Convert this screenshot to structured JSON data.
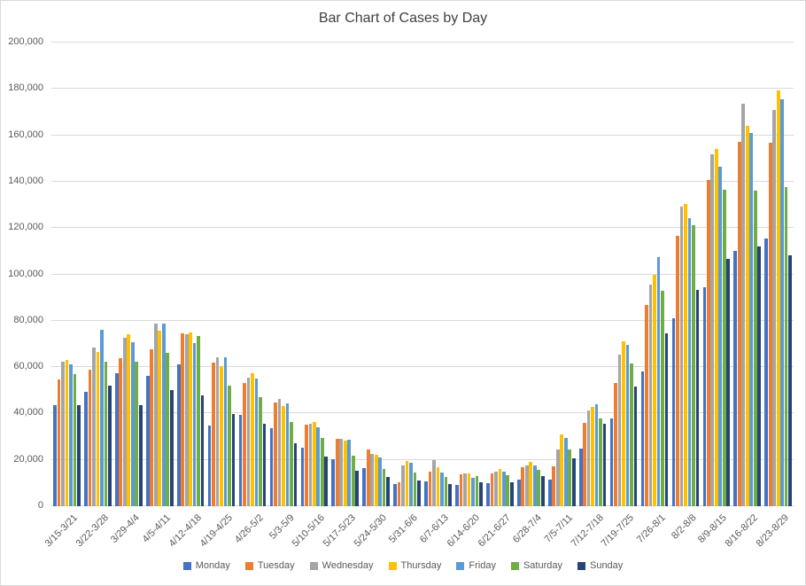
{
  "window": {
    "background": "#FFFFFF",
    "border_color": "#D9D9D9"
  },
  "chart_data": {
    "type": "bar",
    "title": "Bar Chart of Cases by Day",
    "title_color": "#3F3F3F",
    "categories": [
      "3/15-3/21",
      "3/22-3/28",
      "3/29-4/4",
      "4/5-4/11",
      "4/12-4/18",
      "4/19-4/25",
      "4/26-5/2",
      "5/3-5/9",
      "5/10-5/16",
      "5/17-5/23",
      "5/24-5/30",
      "5/31-6/6",
      "6/7-6/13",
      "6/14-6/20",
      "6/21-6/27",
      "6/28-7/4",
      "7/5-7/11",
      "7/12-7/18",
      "7/19-7/25",
      "7/26-8/1",
      "8/2-8/8",
      "8/9-8/15",
      "8/16-8/22",
      "8/23-8/29"
    ],
    "series": [
      {
        "name": "Monday",
        "color": "#4472C4",
        "values": [
          43600,
          49500,
          57400,
          56300,
          61200,
          35000,
          39500,
          33800,
          25200,
          20200,
          16300,
          9600,
          10600,
          9200,
          9800,
          11500,
          11500,
          24900,
          37800,
          58200,
          81200,
          94600,
          110300,
          115400
        ]
      },
      {
        "name": "Tuesday",
        "color": "#ED7D31",
        "values": [
          54600,
          59100,
          63700,
          67600,
          74500,
          61800,
          53100,
          44900,
          35300,
          29200,
          24500,
          10400,
          14900,
          13800,
          14000,
          16800,
          17200,
          35900,
          53200,
          86900,
          116600,
          140900,
          157200,
          156800
        ]
      },
      {
        "name": "Wednesday",
        "color": "#A5A5A5",
        "values": [
          62200,
          68300,
          72500,
          78800,
          74100,
          64300,
          55400,
          46300,
          35700,
          28900,
          22700,
          17700,
          20000,
          14300,
          14900,
          17800,
          24600,
          41400,
          65500,
          95600,
          129300,
          151700,
          173600,
          170800
        ]
      },
      {
        "name": "Thursday",
        "color": "#FFC000",
        "values": [
          63000,
          66700,
          74100,
          75800,
          74900,
          60500,
          57300,
          43300,
          36300,
          28300,
          22100,
          19500,
          16800,
          14300,
          15900,
          19000,
          31000,
          42700,
          71100,
          99800,
          130400,
          154300,
          164200,
          179500
        ]
      },
      {
        "name": "Friday",
        "color": "#5B9BD5",
        "values": [
          61200,
          76200,
          70900,
          78800,
          70300,
          64100,
          55000,
          44200,
          34200,
          28600,
          21200,
          18600,
          14400,
          12400,
          14900,
          17500,
          29600,
          44000,
          69800,
          107400,
          124200,
          146400,
          160900,
          175500
        ]
      },
      {
        "name": "Saturday",
        "color": "#70AD47",
        "values": [
          57000,
          62200,
          62200,
          66000,
          73600,
          52200,
          47100,
          36300,
          29300,
          22000,
          16000,
          14500,
          12700,
          13000,
          13400,
          15600,
          24500,
          37900,
          61600,
          93000,
          121100,
          136400,
          136200,
          137500
        ]
      },
      {
        "name": "Sunday",
        "color": "#264478",
        "values": [
          43600,
          51900,
          43600,
          50000,
          47800,
          39900,
          35400,
          27000,
          21300,
          15500,
          12500,
          11100,
          9600,
          10500,
          10200,
          13000,
          20700,
          35400,
          51700,
          74500,
          93400,
          106700,
          112000,
          108300
        ]
      }
    ],
    "xlabel": "",
    "ylabel": "",
    "ylim": [
      0,
      200000
    ],
    "ytick_interval": 20000,
    "ytick_labels": [
      "0",
      "20,000",
      "40,000",
      "60,000",
      "80,000",
      "100,000",
      "120,000",
      "140,000",
      "160,000",
      "180,000",
      "200,000"
    ],
    "grid": true,
    "gridline_color": "#D9D9D9",
    "axis_label_color": "#595959",
    "legend_position": "bottom"
  }
}
